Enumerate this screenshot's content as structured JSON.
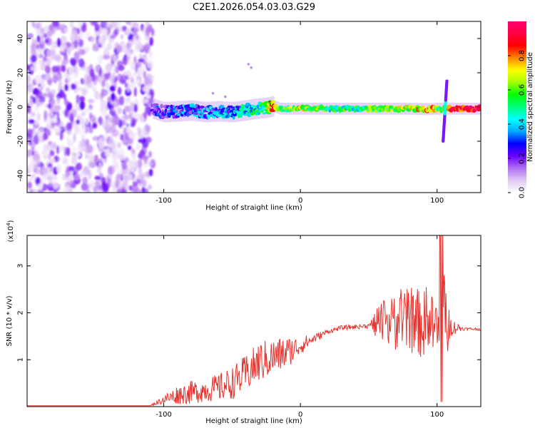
{
  "title": "C2E1.2026.054.03.03.G29",
  "chart_data": [
    {
      "type": "heatmap",
      "name": "spectrogram",
      "xlabel": "Height of straight line (km)",
      "ylabel": "Frequency (Hz)",
      "xlim": [
        -200,
        132
      ],
      "ylim": [
        -50,
        50
      ],
      "xticks": [
        -100,
        0,
        100
      ],
      "xtick_labels": [
        "-100",
        "0",
        "100"
      ],
      "yticks": [
        -40,
        -20,
        0,
        20,
        40
      ],
      "ytick_labels": [
        "-40",
        "-20",
        "0",
        "20",
        "40"
      ],
      "noise_region_km": [
        -200,
        -108
      ],
      "signal_track": {
        "x": [
          -108,
          -100,
          -90,
          -80,
          -70,
          -60,
          -50,
          -40,
          -33,
          -25,
          -20,
          -15,
          -10,
          -5,
          0,
          10,
          20,
          40,
          60,
          80,
          90,
          95,
          100,
          105,
          110,
          120,
          132
        ],
        "y": [
          -1,
          -3,
          -2.5,
          -2,
          -3,
          -2.5,
          -3,
          -2,
          -1,
          -0.5,
          0.5,
          -1,
          -1,
          -1,
          -1,
          -1,
          -1,
          -1,
          -1,
          -1,
          -1.2,
          -1.2,
          -1,
          -1,
          -1,
          -1,
          -1
        ],
        "amplitude": [
          0.15,
          0.25,
          0.25,
          0.3,
          0.3,
          0.3,
          0.35,
          0.4,
          0.45,
          0.55,
          0.8,
          0.6,
          0.55,
          0.6,
          0.7,
          0.55,
          0.5,
          0.5,
          0.55,
          0.65,
          0.75,
          0.8,
          0.6,
          0.5,
          0.85,
          0.9,
          0.9
        ]
      },
      "spike_at_km": 106,
      "spike_range_hz": [
        -20,
        16
      ],
      "colorbar": {
        "label": "Normalized spectral amplitude",
        "range": [
          0,
          1
        ],
        "ticks": [
          0.0,
          0.2,
          0.4,
          0.6,
          0.8
        ],
        "tick_labels": [
          "0.0",
          "0.2",
          "0.4",
          "0.6",
          "0.8"
        ],
        "colors": [
          "#ffffff",
          "#e0c8f4",
          "#b070f0",
          "#6a00ff",
          "#0000ff",
          "#00a8ff",
          "#00ffff",
          "#00ff80",
          "#00ff00",
          "#a0ff00",
          "#ffff00",
          "#ff8800",
          "#ff0000",
          "#ff0040",
          "#ff0070"
        ]
      }
    },
    {
      "type": "line",
      "name": "snr",
      "xlabel": "Height of straight line (km)",
      "ylabel": "SNR (10 * v/v)",
      "yscale_label": "(x10",
      "yscale_exponent": "4",
      "yscale_close": ")",
      "xlim": [
        -200,
        132
      ],
      "ylim": [
        0,
        3.65
      ],
      "xticks": [
        -100,
        0,
        100
      ],
      "xtick_labels": [
        "-100",
        "0",
        "100"
      ],
      "yticks": [
        1,
        2,
        3
      ],
      "ytick_labels": [
        "1",
        "2",
        "3"
      ],
      "line_color": "#e8322d",
      "x": [
        -200,
        -110,
        -100,
        -90,
        -80,
        -70,
        -60,
        -50,
        -40,
        -30,
        -20,
        -10,
        0,
        10,
        20,
        30,
        40,
        50,
        55,
        60,
        70,
        80,
        90,
        95,
        100,
        103,
        105,
        107,
        110,
        120,
        132
      ],
      "y": [
        0.02,
        0.02,
        0.15,
        0.25,
        0.3,
        0.35,
        0.4,
        0.5,
        0.7,
        0.95,
        1.05,
        1.15,
        1.3,
        1.45,
        1.6,
        1.68,
        1.7,
        1.72,
        1.75,
        1.75,
        1.8,
        1.85,
        1.75,
        1.7,
        1.6,
        1.4,
        1.6,
        1.7,
        1.7,
        1.66,
        1.65
      ],
      "noise_amplitude_y": [
        0,
        0,
        0.1,
        0.2,
        0.25,
        0.25,
        0.3,
        0.35,
        0.4,
        0.45,
        0.4,
        0.35,
        0.2,
        0.1,
        0.05,
        0.05,
        0.05,
        0.05,
        0.3,
        0.5,
        0.6,
        0.7,
        0.75,
        0.7,
        0.9,
        1.5,
        1.3,
        0.9,
        0.2,
        0.03,
        0.03
      ]
    }
  ]
}
